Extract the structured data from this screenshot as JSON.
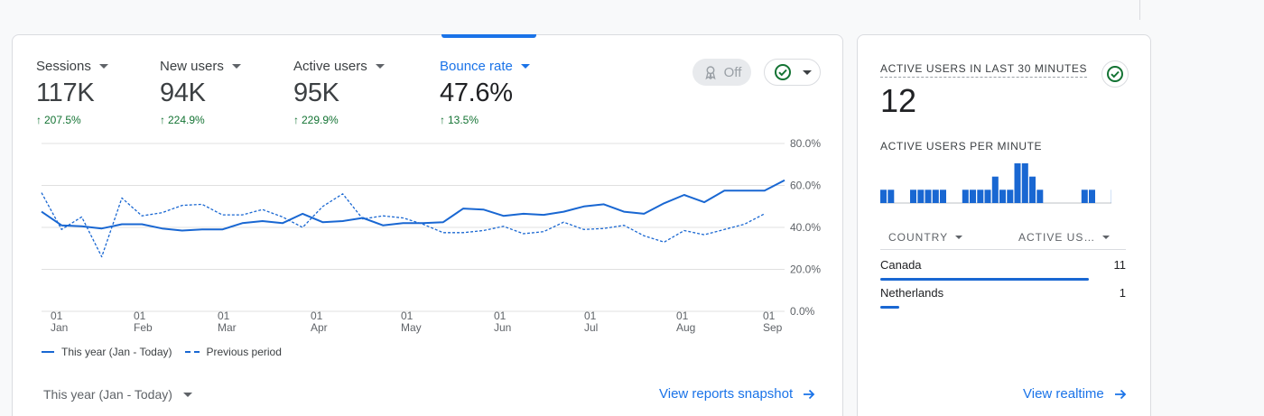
{
  "metrics": [
    {
      "label": "Sessions",
      "value": "117K",
      "change": "207.5%"
    },
    {
      "label": "New users",
      "value": "94K",
      "change": "224.9%"
    },
    {
      "label": "Active users",
      "value": "95K",
      "change": "229.9%"
    },
    {
      "label": "Bounce rate",
      "value": "47.6%",
      "change": "13.5%"
    }
  ],
  "toolbar": {
    "off_label": "Off"
  },
  "chart_data": {
    "type": "line",
    "y_tick_labels": [
      "80.0%",
      "60.0%",
      "40.0%",
      "20.0%",
      "0.0%"
    ],
    "ylim": [
      0,
      80
    ],
    "x_tick_labels": [
      {
        "day": "01",
        "month": "Jan"
      },
      {
        "day": "01",
        "month": "Feb"
      },
      {
        "day": "01",
        "month": "Mar"
      },
      {
        "day": "01",
        "month": "Apr"
      },
      {
        "day": "01",
        "month": "May"
      },
      {
        "day": "01",
        "month": "Jun"
      },
      {
        "day": "01",
        "month": "Jul"
      },
      {
        "day": "01",
        "month": "Aug"
      },
      {
        "day": "01",
        "month": "Sep"
      }
    ],
    "grid": true,
    "legend_position": "bottom-left",
    "series": [
      {
        "name": "This year (Jan - Today)",
        "style": "solid",
        "color": "#1967d2",
        "values": [
          47.5,
          41,
          40.5,
          39.5,
          41.5,
          41.5,
          39.5,
          38.5,
          39,
          39,
          42,
          43,
          42,
          46.5,
          42.5,
          43,
          44.5,
          41,
          42,
          42,
          42.5,
          49,
          48.5,
          45.5,
          46.5,
          46,
          47.5,
          50,
          51,
          47.5,
          46.5,
          51.5,
          55.5,
          52,
          57.5,
          57.5,
          57.5,
          62.5
        ]
      },
      {
        "name": "Previous period",
        "style": "dashed",
        "color": "#1967d2",
        "values": [
          56.5,
          39,
          45,
          26,
          54,
          45.5,
          47,
          50.5,
          51,
          46,
          46,
          48.5,
          45,
          40,
          50,
          56,
          44,
          45.5,
          44.5,
          41.5,
          37.5,
          37.5,
          38.5,
          40.5,
          37,
          38,
          42.5,
          39,
          39.5,
          41,
          36,
          33,
          38.5,
          36.5,
          39,
          41.5,
          46.5
        ]
      }
    ]
  },
  "legend": {
    "this_year": "This year (Jan - Today)",
    "previous": "Previous period"
  },
  "footer": {
    "date_range": "This year (Jan - Today)",
    "snapshot_link": "View reports snapshot"
  },
  "realtime": {
    "title": "ACTIVE USERS IN LAST 30 MINUTES",
    "count": "12",
    "per_minute_title": "ACTIVE USERS PER MINUTE",
    "per_minute_values": [
      1,
      1,
      0,
      0,
      1,
      1,
      1,
      1,
      1,
      0,
      0,
      1,
      1,
      1,
      1,
      2,
      1,
      1,
      3,
      3,
      2,
      1,
      0,
      0,
      0,
      0,
      0,
      1,
      1,
      0,
      0,
      1
    ],
    "table": {
      "col_country": "COUNTRY",
      "col_active": "ACTIVE US…",
      "rows": [
        {
          "country": "Canada",
          "value": "11",
          "share": 0.917
        },
        {
          "country": "Netherlands",
          "value": "1",
          "share": 0.083
        }
      ]
    },
    "link": "View realtime"
  }
}
